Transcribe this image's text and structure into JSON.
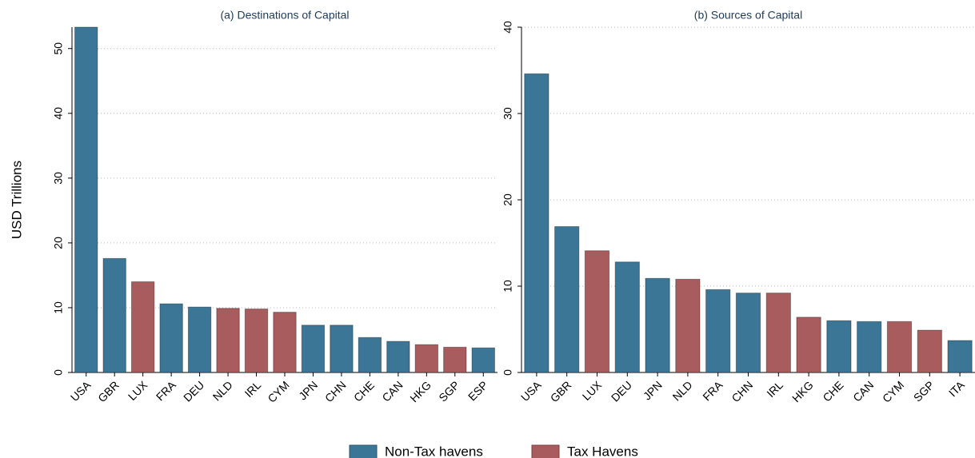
{
  "chart_data": [
    {
      "type": "bar",
      "title": "(a) Destinations of Capital",
      "ylabel": "USD Trillions",
      "categories": [
        "USA",
        "GBR",
        "LUX",
        "FRA",
        "DEU",
        "NLD",
        "IRL",
        "CYM",
        "JPN",
        "CHN",
        "CHE",
        "CAN",
        "HKG",
        "SGP",
        "ESP"
      ],
      "series": [
        {
          "name": "Non-Tax havens",
          "color": "#3b7696",
          "values": [
            53.3,
            17.6,
            null,
            10.6,
            10.1,
            null,
            null,
            null,
            7.3,
            7.3,
            5.4,
            4.8,
            null,
            null,
            3.8
          ]
        },
        {
          "name": "Tax Havens",
          "color": "#a85c5e",
          "values": [
            null,
            null,
            14.0,
            null,
            null,
            9.9,
            9.8,
            9.3,
            null,
            null,
            null,
            null,
            4.3,
            3.9,
            null
          ]
        }
      ],
      "ylim": [
        0,
        53.3
      ],
      "yticks": [
        0,
        10,
        20,
        30,
        40,
        50
      ],
      "grid": true
    },
    {
      "type": "bar",
      "title": "(b) Sources of Capital",
      "categories": [
        "USA",
        "GBR",
        "LUX",
        "DEU",
        "JPN",
        "NLD",
        "FRA",
        "CHN",
        "IRL",
        "HKG",
        "CHE",
        "CAN",
        "CYM",
        "SGP",
        "ITA"
      ],
      "series": [
        {
          "name": "Non-Tax havens",
          "color": "#3b7696",
          "values": [
            34.6,
            16.9,
            null,
            12.8,
            10.9,
            null,
            9.6,
            9.2,
            null,
            null,
            6.0,
            5.9,
            null,
            null,
            3.7
          ]
        },
        {
          "name": "Tax Havens",
          "color": "#a85c5e",
          "values": [
            null,
            null,
            14.1,
            null,
            null,
            10.8,
            null,
            null,
            9.2,
            6.4,
            null,
            null,
            5.9,
            4.9,
            null
          ]
        }
      ],
      "ylim": [
        0,
        40
      ],
      "yticks": [
        0,
        10,
        20,
        30,
        40
      ],
      "grid": true
    }
  ]
}
